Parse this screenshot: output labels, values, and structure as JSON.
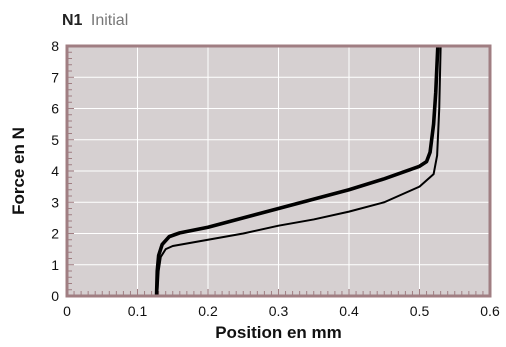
{
  "chart_data": {
    "type": "line",
    "title_bold": "N1",
    "title_light": "Initial",
    "xlabel": "Position en mm",
    "ylabel": "Force en N",
    "xlim": [
      0,
      0.6
    ],
    "ylim": [
      0,
      8
    ],
    "x_ticks": [
      "0",
      "0.1",
      "0.2",
      "0.3",
      "0.4",
      "0.5",
      "0.6"
    ],
    "y_ticks": [
      "0",
      "1",
      "2",
      "3",
      "4",
      "5",
      "6",
      "7",
      "8"
    ],
    "grid": true,
    "colors": {
      "plot_background": "#d6d0d1",
      "frame": "#a07e82",
      "grid": "#ffffff",
      "line": "#000000"
    },
    "series": [
      {
        "values": [
          [
            0.127,
            0
          ],
          [
            0.128,
            0.8
          ],
          [
            0.13,
            1.3
          ],
          [
            0.135,
            1.65
          ],
          [
            0.145,
            1.9
          ],
          [
            0.16,
            2.02
          ],
          [
            0.2,
            2.2
          ],
          [
            0.25,
            2.5
          ],
          [
            0.3,
            2.8
          ],
          [
            0.35,
            3.1
          ],
          [
            0.4,
            3.4
          ],
          [
            0.45,
            3.75
          ],
          [
            0.5,
            4.15
          ],
          [
            0.51,
            4.3
          ],
          [
            0.515,
            4.6
          ],
          [
            0.52,
            5.5
          ],
          [
            0.523,
            6.5
          ],
          [
            0.526,
            8
          ]
        ]
      },
      {
        "values": [
          [
            0.128,
            0
          ],
          [
            0.13,
            0.8
          ],
          [
            0.133,
            1.25
          ],
          [
            0.14,
            1.5
          ],
          [
            0.15,
            1.6
          ],
          [
            0.2,
            1.8
          ],
          [
            0.25,
            2.0
          ],
          [
            0.3,
            2.25
          ],
          [
            0.35,
            2.45
          ],
          [
            0.4,
            2.7
          ],
          [
            0.45,
            3.0
          ],
          [
            0.5,
            3.5
          ],
          [
            0.52,
            3.9
          ],
          [
            0.525,
            4.5
          ],
          [
            0.528,
            6.0
          ],
          [
            0.53,
            8
          ]
        ]
      }
    ]
  }
}
